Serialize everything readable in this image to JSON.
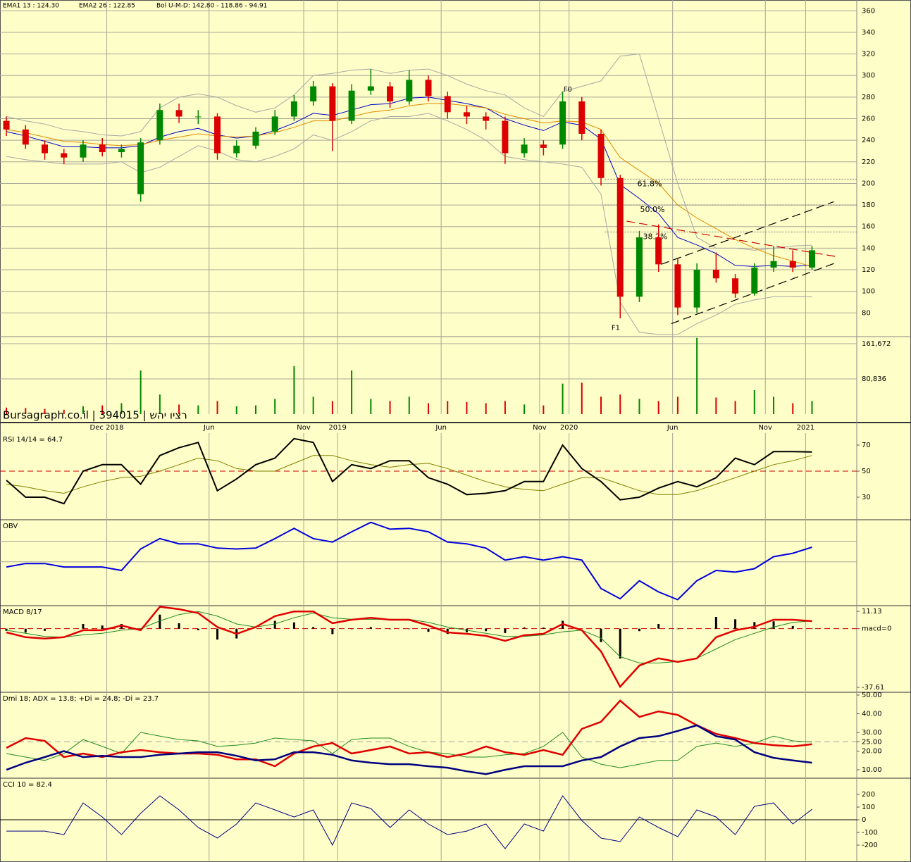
{
  "chart_data": [
    {
      "type": "candlestick",
      "x": [
        1,
        4,
        7,
        10,
        13,
        16,
        19,
        22,
        25,
        28,
        31,
        34,
        37,
        40,
        43,
        46,
        49,
        52,
        55,
        58,
        61,
        64,
        67,
        70,
        73,
        76,
        79,
        82,
        85,
        88,
        91,
        94,
        97,
        100,
        103,
        106,
        109,
        112,
        115,
        118,
        121,
        124,
        127
      ],
      "xlim": [
        0,
        134
      ],
      "xticks": [
        {
          "value": 16.7,
          "label": "Dec  2018"
        },
        {
          "value": 32.7,
          "label": "Jun"
        },
        {
          "value": 47.5,
          "label": "Nov"
        },
        {
          "value": 52.8,
          "label": "2019"
        },
        {
          "value": 69,
          "label": "Jun"
        },
        {
          "value": 84.4,
          "label": "Nov"
        },
        {
          "value": 89,
          "label": "2020"
        },
        {
          "value": 105.2,
          "label": "Jun"
        },
        {
          "value": 119.7,
          "label": "Nov"
        },
        {
          "value": 126,
          "label": "2021"
        }
      ],
      "ylim": [
        58,
        370
      ],
      "yticks": [
        80,
        100,
        120,
        140,
        160,
        180,
        200,
        220,
        240,
        260,
        280,
        300,
        320,
        340,
        360
      ],
      "grid": true,
      "up_color": "#008800",
      "down_color": "#dd0000",
      "open": [
        258,
        250,
        236,
        228,
        224,
        236,
        229,
        190,
        240,
        268,
        262,
        262,
        228,
        235,
        248,
        262,
        276,
        290,
        258,
        286,
        290,
        276,
        296,
        281,
        266,
        262,
        258,
        228,
        236,
        236,
        276,
        246,
        205,
        95,
        150,
        125,
        85,
        120,
        112,
        98,
        122,
        128,
        122
      ],
      "high": [
        262,
        254,
        240,
        232,
        240,
        242,
        236,
        242,
        274,
        274,
        268,
        265,
        240,
        252,
        268,
        282,
        295,
        293,
        292,
        306,
        294,
        305,
        300,
        285,
        272,
        266,
        262,
        242,
        240,
        285,
        280,
        250,
        208,
        156,
        162,
        130,
        126,
        136,
        116,
        126,
        142,
        138,
        142
      ],
      "low": [
        244,
        232,
        222,
        218,
        220,
        225,
        224,
        183,
        236,
        256,
        255,
        222,
        224,
        232,
        245,
        258,
        272,
        230,
        255,
        282,
        270,
        273,
        276,
        260,
        255,
        250,
        218,
        224,
        226,
        232,
        240,
        198,
        75,
        90,
        118,
        78,
        80,
        108,
        94,
        96,
        118,
        118,
        120
      ],
      "close": [
        250,
        236,
        228,
        224,
        236,
        229,
        232,
        238,
        268,
        262,
        262,
        228,
        235,
        248,
        262,
        276,
        290,
        258,
        286,
        290,
        276,
        296,
        281,
        266,
        262,
        258,
        228,
        236,
        233,
        276,
        246,
        205,
        95,
        150,
        125,
        85,
        120,
        112,
        98,
        122,
        128,
        122,
        138
      ],
      "series": [
        {
          "name": "EMA1 13 : 124.30",
          "color": "#0000cc",
          "width": 1,
          "values": [
            248,
            244,
            239,
            234,
            234,
            233,
            233,
            235,
            243,
            248,
            251,
            245,
            242,
            244,
            249,
            256,
            265,
            263,
            268,
            273,
            274,
            279,
            280,
            277,
            274,
            270,
            260,
            254,
            249,
            257,
            254,
            241,
            199,
            186,
            172,
            150,
            143,
            135,
            124,
            123,
            124,
            123,
            124.3
          ]
        },
        {
          "name": "EMA2 26 : 122.85",
          "color": "#e08a00",
          "width": 1,
          "values": [
            250,
            247,
            243,
            239,
            238,
            236,
            235,
            236,
            240,
            243,
            246,
            244,
            243,
            244,
            247,
            252,
            258,
            258,
            262,
            266,
            268,
            272,
            274,
            274,
            272,
            270,
            264,
            260,
            256,
            258,
            257,
            250,
            224,
            212,
            200,
            180,
            168,
            158,
            148,
            140,
            133,
            128,
            122.85
          ]
        }
      ],
      "bollinger": {
        "name": "Bol U-M-D: 142.80 - 118.86 - 94.91",
        "color": "#a8a8a8",
        "upper": [
          262,
          258,
          255,
          250,
          248,
          245,
          244,
          248,
          270,
          280,
          283,
          280,
          272,
          266,
          270,
          282,
          300,
          302,
          305,
          306,
          302,
          305,
          306,
          300,
          292,
          286,
          282,
          270,
          262,
          285,
          290,
          295,
          318,
          320,
          260,
          200,
          150,
          140,
          140,
          138,
          140,
          142,
          142.8
        ],
        "lower": [
          225,
          222,
          220,
          218,
          218,
          218,
          220,
          210,
          215,
          225,
          235,
          230,
          222,
          220,
          225,
          232,
          245,
          240,
          248,
          258,
          262,
          262,
          265,
          258,
          250,
          240,
          225,
          222,
          220,
          218,
          215,
          190,
          90,
          62,
          60,
          60,
          70,
          78,
          88,
          92,
          95,
          95,
          94.91
        ]
      },
      "fib_start": 94.6,
      "fib_levels": [
        {
          "value": 204,
          "label": "61.8%"
        },
        {
          "value": 180,
          "label": "50.0%"
        },
        {
          "value": 155,
          "label": "38.2%"
        }
      ],
      "trendlines": [
        {
          "x": [
            103.4,
            130.4
          ],
          "y": [
            125,
            183
          ],
          "color": "#000000"
        },
        {
          "x": [
            105,
            131
          ],
          "y": [
            70,
            127
          ],
          "color": "#000000"
        },
        {
          "x": [
            98,
            131
          ],
          "y": [
            165,
            132
          ],
          "color": "#cc0000"
        }
      ],
      "annotations": [
        {
          "text": "F0",
          "x": 88.8,
          "y": 287
        },
        {
          "text": "F1",
          "x": 96.3,
          "y": 66
        }
      ]
    },
    {
      "type": "bar",
      "ylim": [
        0,
        177839
      ],
      "yticks": [
        {
          "value": 161672,
          "label": "161,672"
        },
        {
          "value": 80836,
          "label": "80,836"
        }
      ],
      "grid": true,
      "watermark": "Bursagraph.co.il | 394015 | רציו יהש",
      "values": [
        15000,
        14000,
        12000,
        10000,
        18000,
        20000,
        25000,
        100000,
        45000,
        22000,
        20000,
        30000,
        18000,
        20000,
        35000,
        110000,
        40000,
        30000,
        100000,
        35000,
        30000,
        40000,
        25000,
        30000,
        28000,
        25000,
        30000,
        22000,
        20000,
        70000,
        72000,
        40000,
        45000,
        35000,
        30000,
        40000,
        175000,
        38000,
        30000,
        55000,
        40000,
        25000,
        30000
      ]
    },
    {
      "type": "line",
      "title": "RSI 14/14 = 64.7",
      "ylim": [
        12.7,
        79.2
      ],
      "yticks": [
        70,
        50,
        30
      ],
      "grid": false,
      "ref_line": {
        "value": 50,
        "color": "#cc0000",
        "dashed": true
      },
      "series": [
        {
          "color": "#808000",
          "width": 1,
          "values": [
            40,
            38,
            35,
            33,
            38,
            42,
            45,
            46,
            50,
            55,
            60,
            58,
            52,
            50,
            50,
            56,
            62,
            62,
            58,
            55,
            53,
            55,
            56,
            52,
            47,
            42,
            38,
            36,
            35,
            40,
            45,
            45,
            40,
            35,
            32,
            32,
            35,
            40,
            45,
            50,
            55,
            58,
            62
          ]
        },
        {
          "color": "#000000",
          "width": 2,
          "values": [
            43,
            30,
            30,
            25,
            50,
            55,
            55,
            40,
            62,
            68,
            72,
            35,
            44,
            55,
            60,
            75,
            72,
            42,
            55,
            52,
            58,
            58,
            45,
            40,
            32,
            33,
            35,
            42,
            42,
            70,
            52,
            42,
            28,
            30,
            37,
            42,
            38,
            45,
            60,
            55,
            65,
            65,
            64.7
          ]
        }
      ]
    },
    {
      "type": "line",
      "title": "OBV",
      "ylim": [
        0,
        100
      ],
      "yticks": [
        75,
        51
      ],
      "grid": true,
      "show_tick_labels": false,
      "series": [
        {
          "color": "#0000dd",
          "width": 2,
          "values": [
            45,
            49,
            49,
            45,
            45,
            45,
            41,
            66,
            78,
            72,
            72,
            67,
            66,
            67,
            78,
            90,
            78,
            74,
            86,
            97,
            89,
            90,
            86,
            74,
            72,
            67,
            53,
            57,
            53,
            57,
            53,
            20,
            8,
            29,
            16,
            7,
            29,
            41,
            39,
            43,
            57,
            61,
            68
          ]
        }
      ]
    },
    {
      "type": "line",
      "title": "MACD 8/17",
      "ylim": [
        -40.77,
        14.74
      ],
      "yticks": [
        11.13,
        {
          "value": 0,
          "label": "macd=0"
        },
        -37.61
      ],
      "grid": false,
      "ref_line": {
        "value": 0,
        "color": "#cc0000",
        "dashed": true
      },
      "histogram": {
        "color": "#000000",
        "values": [
          -1.4,
          -2.5,
          -1.4,
          0,
          3,
          2,
          3,
          -1,
          9,
          3.5,
          -1,
          -7,
          -6.3,
          0,
          5,
          4,
          1,
          -3.5,
          -0.3,
          1,
          -0.3,
          -0.3,
          -2,
          -3.4,
          -2.3,
          -1.6,
          -2.8,
          0.8,
          0.7,
          5,
          0,
          -8.6,
          -19.2,
          -1.6,
          3,
          -0.3,
          0,
          7.5,
          6,
          4.2,
          4.7,
          1.7,
          -0.2
        ]
      },
      "series": [
        {
          "color": "#228b22",
          "width": 1,
          "values": [
            -1,
            -3,
            -5,
            -5.5,
            -4,
            -3,
            -1,
            0,
            5,
            9,
            11,
            8,
            3,
            1,
            3,
            7,
            10,
            7,
            6,
            6,
            6,
            6,
            4,
            1,
            -1,
            -3,
            -5,
            -5,
            -4,
            -2,
            -1,
            -6,
            -18,
            -22,
            -22,
            -21,
            -19,
            -13,
            -7,
            -3,
            1,
            4,
            5
          ]
        },
        {
          "color": "#e00000",
          "width": 2.5,
          "values": [
            -2.4,
            -5.5,
            -6.4,
            -5.5,
            -1,
            -1,
            2,
            -1,
            14,
            12.5,
            10,
            1,
            -3.3,
            1,
            8,
            11,
            11,
            3.5,
            5.7,
            7,
            5.7,
            5.7,
            2,
            -2.4,
            -3.3,
            -4.6,
            -7.8,
            -4.2,
            -3.3,
            3,
            -1,
            -14.6,
            -37.2,
            -23.6,
            -19,
            -21.3,
            -19,
            -5.5,
            -1,
            1.2,
            5.7,
            5.7,
            4.8
          ]
        }
      ]
    },
    {
      "type": "line",
      "title": "Dmi 18; ADX = 13.8; +Di = 24.8; -Di = 23.7",
      "ylim": [
        5.5,
        51.5
      ],
      "yticks": [
        {
          "value": 50,
          "label": "50.00"
        },
        {
          "value": 40,
          "label": "40.00"
        },
        {
          "value": 30,
          "label": "30.00"
        },
        {
          "value": 25,
          "label": "25.00"
        },
        {
          "value": 20,
          "label": "20.00"
        },
        {
          "value": 10,
          "label": "10.00"
        }
      ],
      "grid": false,
      "ref_line": {
        "value": 25,
        "color": "#a0a0a0",
        "dashed": true
      },
      "series": [
        {
          "color": "#228b22",
          "width": 1,
          "values": [
            18.7,
            16.8,
            15,
            18.7,
            26.2,
            22.5,
            18.7,
            30,
            28,
            26.2,
            25.5,
            22.5,
            23.2,
            24.3,
            27,
            26.2,
            25.5,
            18.7,
            26.2,
            27,
            27,
            22.5,
            19.4,
            18.7,
            16.8,
            16.8,
            18,
            18.7,
            22.5,
            30,
            16.8,
            13,
            11.1,
            13,
            15,
            15,
            22.5,
            24.3,
            22.5,
            24.3,
            28,
            25.5,
            24.8
          ]
        },
        {
          "color": "#e00000",
          "width": 2.5,
          "values": [
            21.7,
            27,
            25.5,
            16.8,
            18.7,
            16.8,
            19.4,
            20.6,
            19.4,
            18.7,
            18.7,
            18,
            15.6,
            15.6,
            11.9,
            18.7,
            22.5,
            24.3,
            18.7,
            20.6,
            22.5,
            18.7,
            19.4,
            16.8,
            18.7,
            22.5,
            19.4,
            18,
            20.6,
            18,
            31.9,
            35.7,
            47,
            38.3,
            41.3,
            39.4,
            33.8,
            29.2,
            27,
            24.3,
            23.2,
            22.5,
            23.7
          ]
        },
        {
          "color": "#000080",
          "width": 2.5,
          "values": [
            10,
            13.8,
            16.8,
            20,
            16.8,
            17.5,
            16.8,
            16.8,
            18,
            18.7,
            19.4,
            19.4,
            17.5,
            15,
            15.6,
            19.4,
            19.4,
            18,
            15,
            13.8,
            13,
            13,
            11.9,
            11.1,
            9.2,
            7.7,
            10,
            11.9,
            11.9,
            11.9,
            15,
            16.8,
            22.5,
            27,
            28,
            30.8,
            33.8,
            28,
            26.2,
            19.4,
            16.4,
            15,
            13.8
          ]
        }
      ]
    },
    {
      "type": "line",
      "title": "CCI 10 = 82.4",
      "ylim": [
        -322,
        328
      ],
      "yticks": [
        200,
        100,
        0,
        -100,
        -200
      ],
      "grid": false,
      "ref_line": {
        "value": 0,
        "color": "#000000",
        "dashed": false
      },
      "series": [
        {
          "color": "#000088",
          "width": 1,
          "values": [
            -89,
            -89,
            -89,
            -117,
            133,
            22,
            -117,
            50,
            189,
            78,
            -61,
            -144,
            -33,
            133,
            78,
            22,
            78,
            -200,
            133,
            89,
            -61,
            78,
            -33,
            -117,
            -89,
            -33,
            -228,
            -33,
            -89,
            189,
            -6,
            -144,
            -172,
            22,
            -61,
            -133,
            78,
            22,
            -117,
            106,
            133,
            -33,
            82.4
          ]
        }
      ]
    }
  ]
}
